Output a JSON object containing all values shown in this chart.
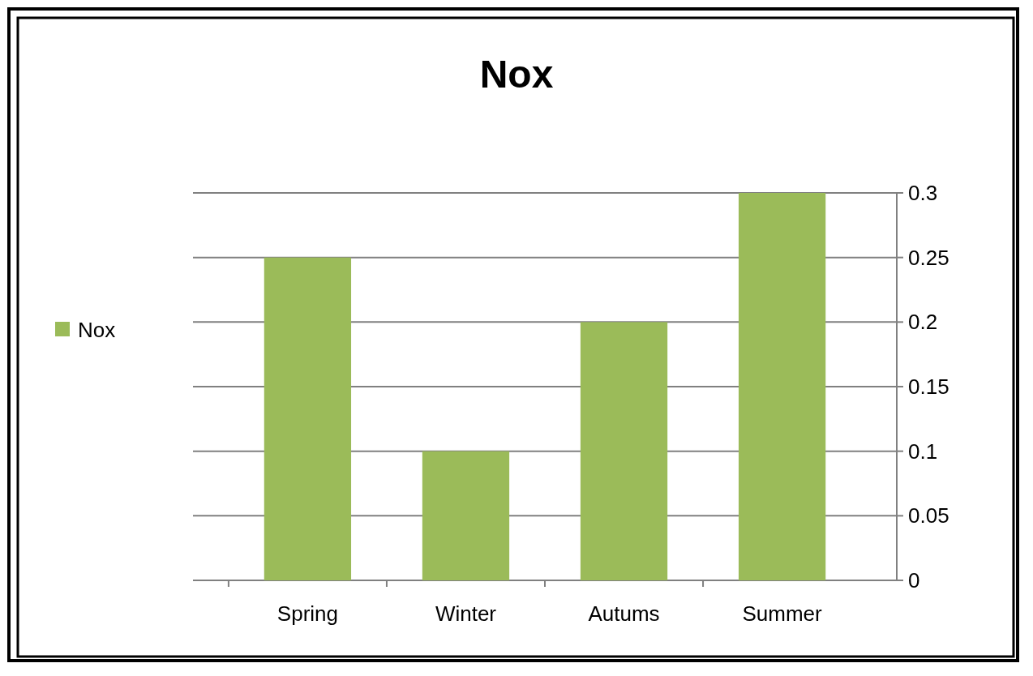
{
  "chart_data": {
    "type": "bar",
    "title": "Nox",
    "categories": [
      "Spring",
      "Winter",
      "Autums",
      "Summer"
    ],
    "series": [
      {
        "name": "Nox",
        "color": "#9bbb59",
        "values": [
          0.25,
          0.1,
          0.2,
          0.3
        ]
      }
    ],
    "ylim": [
      0,
      0.3
    ],
    "yticks": [
      0,
      0.05,
      0.1,
      0.15,
      0.2,
      0.25,
      0.3
    ],
    "grid": "y",
    "legend": "left"
  }
}
